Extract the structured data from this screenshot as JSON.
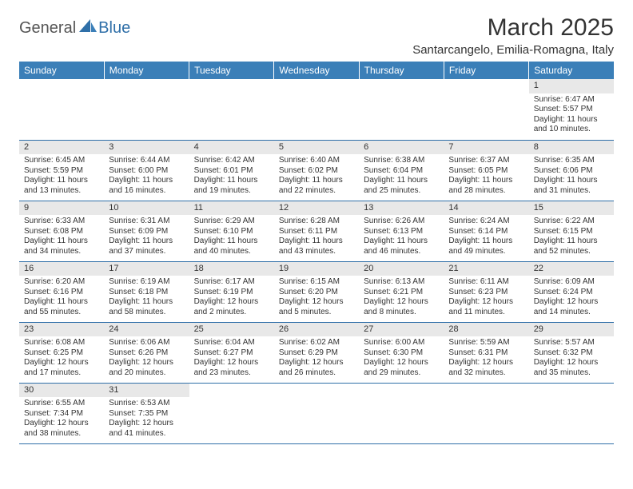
{
  "logo": {
    "part1": "General",
    "part2": "Blue"
  },
  "title": "March 2025",
  "subtitle": "Santarcangelo, Emilia-Romagna, Italy",
  "colors": {
    "header_bg": "#3b7fb8",
    "header_text": "#ffffff",
    "daynum_bg": "#e8e8e8",
    "border": "#2f6fa8",
    "logo_gray": "#555555",
    "logo_blue": "#2f6fa8"
  },
  "weekday_labels": [
    "Sunday",
    "Monday",
    "Tuesday",
    "Wednesday",
    "Thursday",
    "Friday",
    "Saturday"
  ],
  "weeks": [
    [
      null,
      null,
      null,
      null,
      null,
      null,
      {
        "n": "1",
        "sunrise": "Sunrise: 6:47 AM",
        "sunset": "Sunset: 5:57 PM",
        "daylight": "Daylight: 11 hours and 10 minutes."
      }
    ],
    [
      {
        "n": "2",
        "sunrise": "Sunrise: 6:45 AM",
        "sunset": "Sunset: 5:59 PM",
        "daylight": "Daylight: 11 hours and 13 minutes."
      },
      {
        "n": "3",
        "sunrise": "Sunrise: 6:44 AM",
        "sunset": "Sunset: 6:00 PM",
        "daylight": "Daylight: 11 hours and 16 minutes."
      },
      {
        "n": "4",
        "sunrise": "Sunrise: 6:42 AM",
        "sunset": "Sunset: 6:01 PM",
        "daylight": "Daylight: 11 hours and 19 minutes."
      },
      {
        "n": "5",
        "sunrise": "Sunrise: 6:40 AM",
        "sunset": "Sunset: 6:02 PM",
        "daylight": "Daylight: 11 hours and 22 minutes."
      },
      {
        "n": "6",
        "sunrise": "Sunrise: 6:38 AM",
        "sunset": "Sunset: 6:04 PM",
        "daylight": "Daylight: 11 hours and 25 minutes."
      },
      {
        "n": "7",
        "sunrise": "Sunrise: 6:37 AM",
        "sunset": "Sunset: 6:05 PM",
        "daylight": "Daylight: 11 hours and 28 minutes."
      },
      {
        "n": "8",
        "sunrise": "Sunrise: 6:35 AM",
        "sunset": "Sunset: 6:06 PM",
        "daylight": "Daylight: 11 hours and 31 minutes."
      }
    ],
    [
      {
        "n": "9",
        "sunrise": "Sunrise: 6:33 AM",
        "sunset": "Sunset: 6:08 PM",
        "daylight": "Daylight: 11 hours and 34 minutes."
      },
      {
        "n": "10",
        "sunrise": "Sunrise: 6:31 AM",
        "sunset": "Sunset: 6:09 PM",
        "daylight": "Daylight: 11 hours and 37 minutes."
      },
      {
        "n": "11",
        "sunrise": "Sunrise: 6:29 AM",
        "sunset": "Sunset: 6:10 PM",
        "daylight": "Daylight: 11 hours and 40 minutes."
      },
      {
        "n": "12",
        "sunrise": "Sunrise: 6:28 AM",
        "sunset": "Sunset: 6:11 PM",
        "daylight": "Daylight: 11 hours and 43 minutes."
      },
      {
        "n": "13",
        "sunrise": "Sunrise: 6:26 AM",
        "sunset": "Sunset: 6:13 PM",
        "daylight": "Daylight: 11 hours and 46 minutes."
      },
      {
        "n": "14",
        "sunrise": "Sunrise: 6:24 AM",
        "sunset": "Sunset: 6:14 PM",
        "daylight": "Daylight: 11 hours and 49 minutes."
      },
      {
        "n": "15",
        "sunrise": "Sunrise: 6:22 AM",
        "sunset": "Sunset: 6:15 PM",
        "daylight": "Daylight: 11 hours and 52 minutes."
      }
    ],
    [
      {
        "n": "16",
        "sunrise": "Sunrise: 6:20 AM",
        "sunset": "Sunset: 6:16 PM",
        "daylight": "Daylight: 11 hours and 55 minutes."
      },
      {
        "n": "17",
        "sunrise": "Sunrise: 6:19 AM",
        "sunset": "Sunset: 6:18 PM",
        "daylight": "Daylight: 11 hours and 58 minutes."
      },
      {
        "n": "18",
        "sunrise": "Sunrise: 6:17 AM",
        "sunset": "Sunset: 6:19 PM",
        "daylight": "Daylight: 12 hours and 2 minutes."
      },
      {
        "n": "19",
        "sunrise": "Sunrise: 6:15 AM",
        "sunset": "Sunset: 6:20 PM",
        "daylight": "Daylight: 12 hours and 5 minutes."
      },
      {
        "n": "20",
        "sunrise": "Sunrise: 6:13 AM",
        "sunset": "Sunset: 6:21 PM",
        "daylight": "Daylight: 12 hours and 8 minutes."
      },
      {
        "n": "21",
        "sunrise": "Sunrise: 6:11 AM",
        "sunset": "Sunset: 6:23 PM",
        "daylight": "Daylight: 12 hours and 11 minutes."
      },
      {
        "n": "22",
        "sunrise": "Sunrise: 6:09 AM",
        "sunset": "Sunset: 6:24 PM",
        "daylight": "Daylight: 12 hours and 14 minutes."
      }
    ],
    [
      {
        "n": "23",
        "sunrise": "Sunrise: 6:08 AM",
        "sunset": "Sunset: 6:25 PM",
        "daylight": "Daylight: 12 hours and 17 minutes."
      },
      {
        "n": "24",
        "sunrise": "Sunrise: 6:06 AM",
        "sunset": "Sunset: 6:26 PM",
        "daylight": "Daylight: 12 hours and 20 minutes."
      },
      {
        "n": "25",
        "sunrise": "Sunrise: 6:04 AM",
        "sunset": "Sunset: 6:27 PM",
        "daylight": "Daylight: 12 hours and 23 minutes."
      },
      {
        "n": "26",
        "sunrise": "Sunrise: 6:02 AM",
        "sunset": "Sunset: 6:29 PM",
        "daylight": "Daylight: 12 hours and 26 minutes."
      },
      {
        "n": "27",
        "sunrise": "Sunrise: 6:00 AM",
        "sunset": "Sunset: 6:30 PM",
        "daylight": "Daylight: 12 hours and 29 minutes."
      },
      {
        "n": "28",
        "sunrise": "Sunrise: 5:59 AM",
        "sunset": "Sunset: 6:31 PM",
        "daylight": "Daylight: 12 hours and 32 minutes."
      },
      {
        "n": "29",
        "sunrise": "Sunrise: 5:57 AM",
        "sunset": "Sunset: 6:32 PM",
        "daylight": "Daylight: 12 hours and 35 minutes."
      }
    ],
    [
      {
        "n": "30",
        "sunrise": "Sunrise: 6:55 AM",
        "sunset": "Sunset: 7:34 PM",
        "daylight": "Daylight: 12 hours and 38 minutes."
      },
      {
        "n": "31",
        "sunrise": "Sunrise: 6:53 AM",
        "sunset": "Sunset: 7:35 PM",
        "daylight": "Daylight: 12 hours and 41 minutes."
      },
      null,
      null,
      null,
      null,
      null
    ]
  ]
}
